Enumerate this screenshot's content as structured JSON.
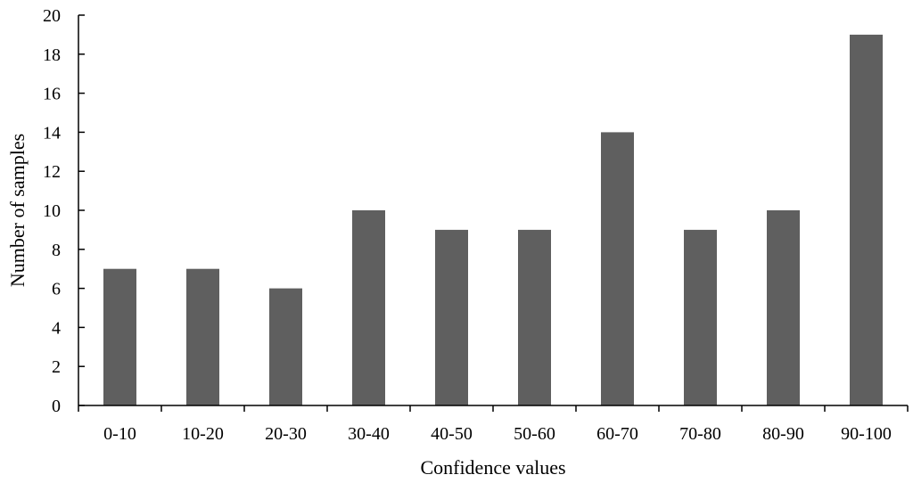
{
  "chart_data": {
    "type": "bar",
    "title": "",
    "xlabel": "Confidence values",
    "ylabel": "Number of samples",
    "categories": [
      "0-10",
      "10-20",
      "20-30",
      "30-40",
      "40-50",
      "50-60",
      "60-70",
      "70-80",
      "80-90",
      "90-100"
    ],
    "values": [
      7,
      7,
      6,
      10,
      9,
      9,
      14,
      9,
      10,
      19
    ],
    "ylim": [
      0,
      20
    ],
    "yticks": [
      0,
      2,
      4,
      6,
      8,
      10,
      12,
      14,
      16,
      18,
      20
    ],
    "grid": false,
    "legend": "none",
    "bar_color": "#5f5f5f"
  }
}
